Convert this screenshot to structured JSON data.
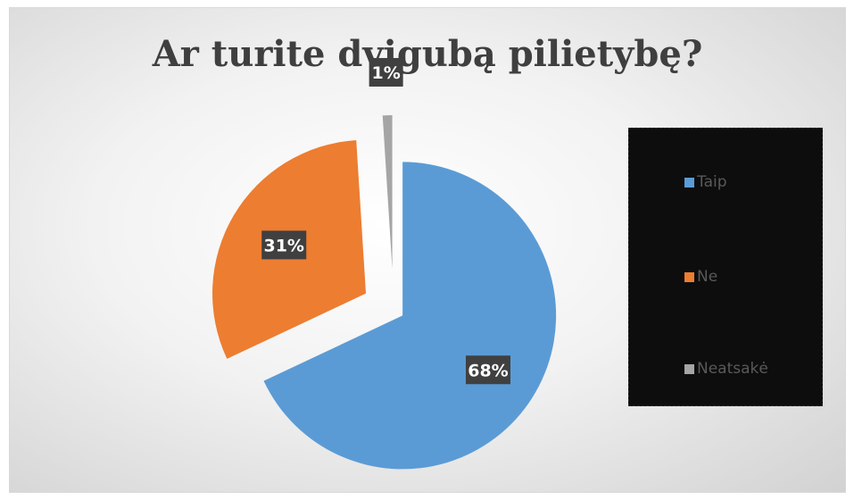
{
  "chart_data": {
    "type": "pie",
    "title": "Ar turite dvigubą pilietybę?",
    "categories": [
      "Taip",
      "Ne",
      "Neatsakė"
    ],
    "values": [
      68,
      31,
      1
    ],
    "data_labels": [
      "68%",
      "31%",
      "1%"
    ],
    "exploded": true,
    "legend_position": "right",
    "colors": [
      "#5b9bd5",
      "#ed7d31",
      "#a5a5a5"
    ]
  }
}
